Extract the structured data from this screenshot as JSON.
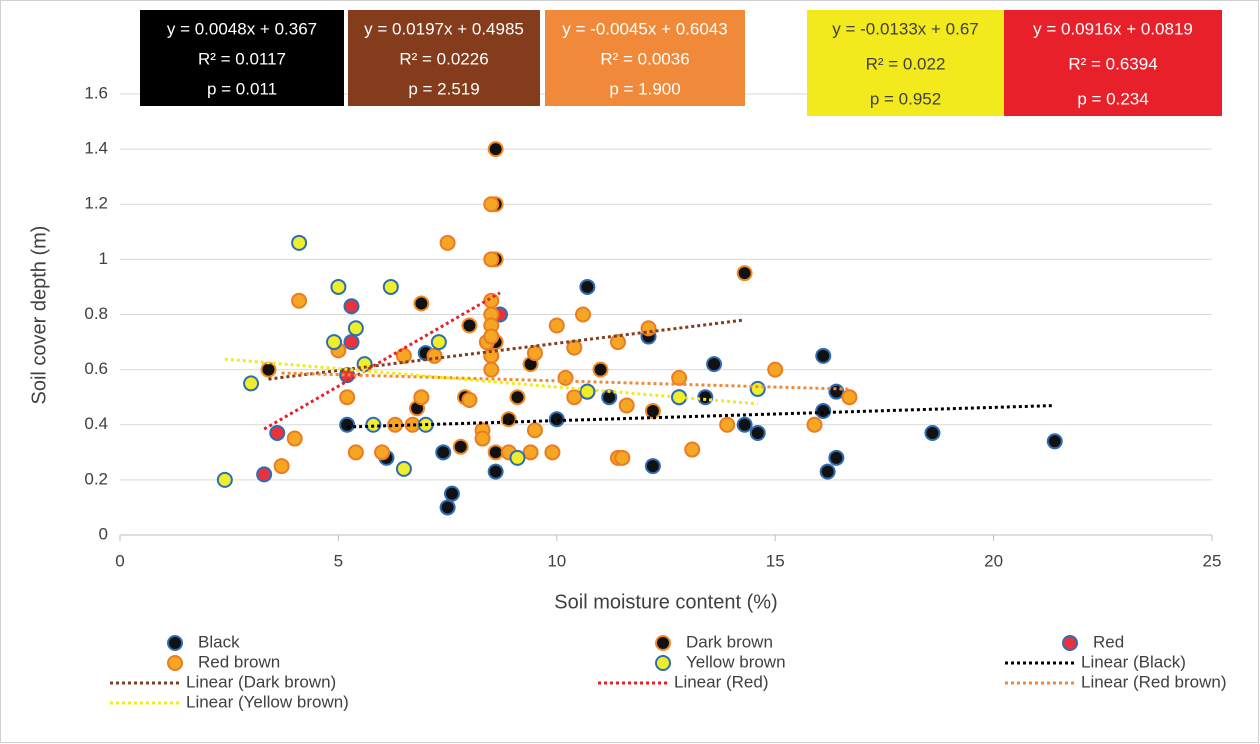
{
  "chart_data": {
    "type": "scatter",
    "xlabel": "Soil moisture content (%)",
    "ylabel": "Soil cover depth (m)",
    "xlim": [
      0,
      25
    ],
    "xticks": [
      0,
      5,
      10,
      15,
      20,
      25
    ],
    "ylim": [
      0,
      1.6
    ],
    "yticks": [
      0,
      0.2,
      0.4,
      0.6,
      0.8,
      1,
      1.2,
      1.4,
      1.6
    ],
    "grid": true,
    "legend": "bottom",
    "series": [
      {
        "name": "Black",
        "color": "#111111",
        "edgecolor": "#2e6db4",
        "x": [
          5.2,
          6.1,
          7.0,
          7.4,
          7.5,
          7.6,
          8.6,
          10.0,
          10.7,
          10.7,
          11.2,
          12.1,
          12.2,
          12.8,
          13.4,
          13.6,
          14.3,
          14.6,
          16.1,
          16.1,
          16.2,
          16.4,
          16.4,
          18.6,
          21.4
        ],
        "values": [
          0.4,
          0.28,
          0.66,
          0.3,
          0.1,
          0.15,
          0.23,
          0.42,
          0.9,
          0.52,
          0.5,
          0.72,
          0.25,
          0.5,
          0.5,
          0.62,
          0.4,
          0.37,
          0.65,
          0.45,
          0.23,
          0.28,
          0.52,
          0.37,
          0.34
        ],
        "trendline": {
          "name": "Linear (Black)",
          "color": "#000000",
          "text_color": "#ffffff",
          "slope": 0.0048,
          "intercept": 0.367,
          "equation": "y = 0.0048x + 0.367",
          "r2": "R² = 0.0117",
          "p": "p = 0.011"
        }
      },
      {
        "name": "Dark brown",
        "color": "#111111",
        "edgecolor": "#f08a24",
        "x": [
          3.4,
          6.8,
          6.9,
          7.8,
          7.9,
          8.0,
          8.4,
          8.6,
          8.6,
          8.6,
          8.6,
          8.6,
          8.9,
          9.1,
          9.4,
          11.0,
          12.2,
          14.3
        ],
        "values": [
          0.6,
          0.46,
          0.84,
          0.32,
          0.5,
          0.76,
          0.7,
          1.4,
          1.2,
          1.0,
          0.7,
          0.3,
          0.42,
          0.5,
          0.62,
          0.6,
          0.45,
          0.95
        ],
        "trendline": {
          "name": "Linear (Dark brown)",
          "color": "#843c1c",
          "text_color": "#ffffff",
          "slope": 0.0197,
          "intercept": 0.4985,
          "equation": "y = 0.0197x + 0.4985",
          "r2": "R² = 0.0226",
          "p": "p = 2.519"
        }
      },
      {
        "name": "Red",
        "color": "#e8333c",
        "edgecolor": "#2e6db4",
        "x": [
          3.3,
          3.6,
          5.2,
          5.3,
          5.3,
          8.7
        ],
        "values": [
          0.22,
          0.37,
          0.58,
          0.83,
          0.7,
          0.8
        ],
        "trendline": {
          "name": "Linear (Red)",
          "color": "#e8202a",
          "text_color": "#ffffff",
          "slope": 0.0916,
          "intercept": 0.0819,
          "equation": "y = 0.0916x + 0.0819",
          "r2": "R² = 0.6394",
          "p": "p = 0.234"
        }
      },
      {
        "name": "Red brown",
        "color": "#f5a623",
        "edgecolor": "#ec7c22",
        "x": [
          3.7,
          4.0,
          4.1,
          5.0,
          5.2,
          5.4,
          6.0,
          6.3,
          6.5,
          6.7,
          6.9,
          7.2,
          7.5,
          8.0,
          8.3,
          8.3,
          8.4,
          8.5,
          8.5,
          8.5,
          8.5,
          8.5,
          8.5,
          8.5,
          8.5,
          8.9,
          9.4,
          9.5,
          9.5,
          9.9,
          10.0,
          10.2,
          10.4,
          10.4,
          10.6,
          11.4,
          11.4,
          11.5,
          11.6,
          12.1,
          12.8,
          13.1,
          13.9,
          15.0,
          15.9,
          16.7
        ],
        "values": [
          0.25,
          0.35,
          0.85,
          0.67,
          0.5,
          0.3,
          0.3,
          0.4,
          0.65,
          0.4,
          0.5,
          0.65,
          1.06,
          0.49,
          0.38,
          0.35,
          0.7,
          1.2,
          1.0,
          0.85,
          0.8,
          0.76,
          0.72,
          0.65,
          0.6,
          0.3,
          0.3,
          0.66,
          0.38,
          0.3,
          0.76,
          0.57,
          0.68,
          0.5,
          0.8,
          0.7,
          0.28,
          0.28,
          0.47,
          0.75,
          0.57,
          0.31,
          0.4,
          0.6,
          0.4,
          0.5
        ],
        "trendline": {
          "name": "Linear (Red brown)",
          "color": "#f08a3a",
          "text_color": "#ffffff",
          "slope": -0.0045,
          "intercept": 0.6043,
          "equation": "y = -0.0045x + 0.6043",
          "r2": "R² = 0.0036",
          "p": "p = 1.900"
        }
      },
      {
        "name": "Yellow brown",
        "color": "#f0ee2a",
        "edgecolor": "#2e6db4",
        "x": [
          2.4,
          3.0,
          4.1,
          4.9,
          5.0,
          5.4,
          5.6,
          5.8,
          6.2,
          6.5,
          7.0,
          7.3,
          9.1,
          10.7,
          12.8,
          14.6
        ],
        "values": [
          0.2,
          0.55,
          1.06,
          0.7,
          0.9,
          0.75,
          0.62,
          0.4,
          0.9,
          0.24,
          0.4,
          0.7,
          0.28,
          0.52,
          0.5,
          0.53
        ],
        "trendline": {
          "name": "Linear (Yellow brown)",
          "color": "#f2ea1c",
          "text_color": "#404040",
          "slope": -0.0133,
          "intercept": 0.67,
          "equation": "y = -0.0133x + 0.67",
          "r2": "R² = 0.022",
          "p": "p = 0.952"
        }
      }
    ]
  }
}
